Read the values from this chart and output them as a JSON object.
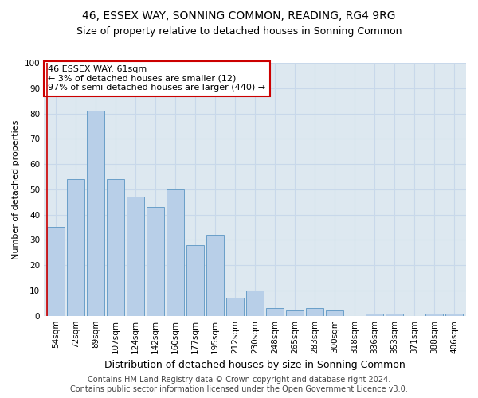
{
  "title": "46, ESSEX WAY, SONNING COMMON, READING, RG4 9RG",
  "subtitle": "Size of property relative to detached houses in Sonning Common",
  "xlabel": "Distribution of detached houses by size in Sonning Common",
  "ylabel": "Number of detached properties",
  "categories": [
    "54sqm",
    "72sqm",
    "89sqm",
    "107sqm",
    "124sqm",
    "142sqm",
    "160sqm",
    "177sqm",
    "195sqm",
    "212sqm",
    "230sqm",
    "248sqm",
    "265sqm",
    "283sqm",
    "300sqm",
    "318sqm",
    "336sqm",
    "353sqm",
    "371sqm",
    "388sqm",
    "406sqm"
  ],
  "values": [
    35,
    54,
    81,
    54,
    47,
    43,
    50,
    28,
    32,
    7,
    10,
    3,
    2,
    3,
    2,
    0,
    1,
    1,
    0,
    1,
    1
  ],
  "bar_color": "#b8cfe8",
  "bar_edge_color": "#6a9fc8",
  "vline_color": "#cc0000",
  "annotation_text": "46 ESSEX WAY: 61sqm\n← 3% of detached houses are smaller (12)\n97% of semi-detached houses are larger (440) →",
  "annotation_box_color": "#ffffff",
  "annotation_box_edge_color": "#cc0000",
  "ylim": [
    0,
    100
  ],
  "yticks": [
    0,
    10,
    20,
    30,
    40,
    50,
    60,
    70,
    80,
    90,
    100
  ],
  "grid_color": "#c8d8ea",
  "bg_color": "#dde8f0",
  "footer_line1": "Contains HM Land Registry data © Crown copyright and database right 2024.",
  "footer_line2": "Contains public sector information licensed under the Open Government Licence v3.0.",
  "title_fontsize": 10,
  "subtitle_fontsize": 9,
  "xlabel_fontsize": 9,
  "ylabel_fontsize": 8,
  "tick_fontsize": 7.5,
  "footer_fontsize": 7
}
